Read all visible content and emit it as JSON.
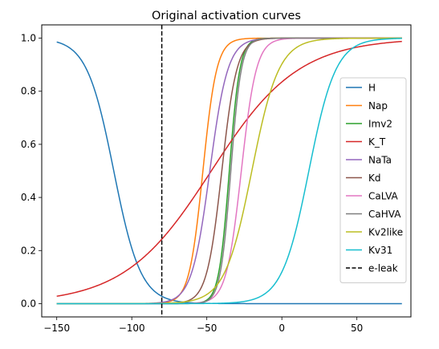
{
  "chart_data": {
    "type": "line",
    "title": "Original activation curves",
    "xlabel": "",
    "ylabel": "",
    "xlim": [
      -160,
      86
    ],
    "ylim": [
      -0.05,
      1.05
    ],
    "xticks": [
      -150,
      -100,
      -50,
      0,
      50
    ],
    "xtick_labels": [
      "−150",
      "−100",
      "−50",
      "0",
      "50"
    ],
    "yticks": [
      0.0,
      0.2,
      0.4,
      0.6,
      0.8,
      1.0
    ],
    "ytick_labels": [
      "0.0",
      "0.2",
      "0.4",
      "0.6",
      "0.8",
      "1.0"
    ],
    "grid": false,
    "legend_position": "center-right",
    "x_range": [
      -150,
      80
    ],
    "series": [
      {
        "name": "H",
        "color": "#1f77b4",
        "direction": -1,
        "v_half": -112,
        "slope": 9
      },
      {
        "name": "Nap",
        "color": "#ff7f0e",
        "direction": 1,
        "v_half": -52.6,
        "slope": 4.6
      },
      {
        "name": "Imv2",
        "color": "#2ca02c",
        "direction": 1,
        "v_half": -35,
        "slope": 3.5
      },
      {
        "name": "K_T",
        "color": "#d62728",
        "direction": 1,
        "v_half": -47,
        "slope": 29
      },
      {
        "name": "NaTa",
        "color": "#9467bd",
        "direction": 1,
        "v_half": -48,
        "slope": 6
      },
      {
        "name": "Kd",
        "color": "#8c564b",
        "direction": 1,
        "v_half": -40,
        "slope": 5
      },
      {
        "name": "CaLVA",
        "color": "#e377c2",
        "direction": 1,
        "v_half": -27,
        "slope": 5
      },
      {
        "name": "CaHVA",
        "color": "#7f7f7f",
        "direction": 1,
        "v_half": -34,
        "slope": 3.5
      },
      {
        "name": "Kv2like",
        "color": "#bcbd22",
        "direction": 1,
        "v_half": -20,
        "slope": 9
      },
      {
        "name": "Kv31",
        "color": "#17becf",
        "direction": 1,
        "v_half": 18,
        "slope": 9
      }
    ],
    "vlines": [
      {
        "name": "e-leak",
        "x": -80,
        "color": "#000000",
        "style": "dashed"
      }
    ]
  }
}
